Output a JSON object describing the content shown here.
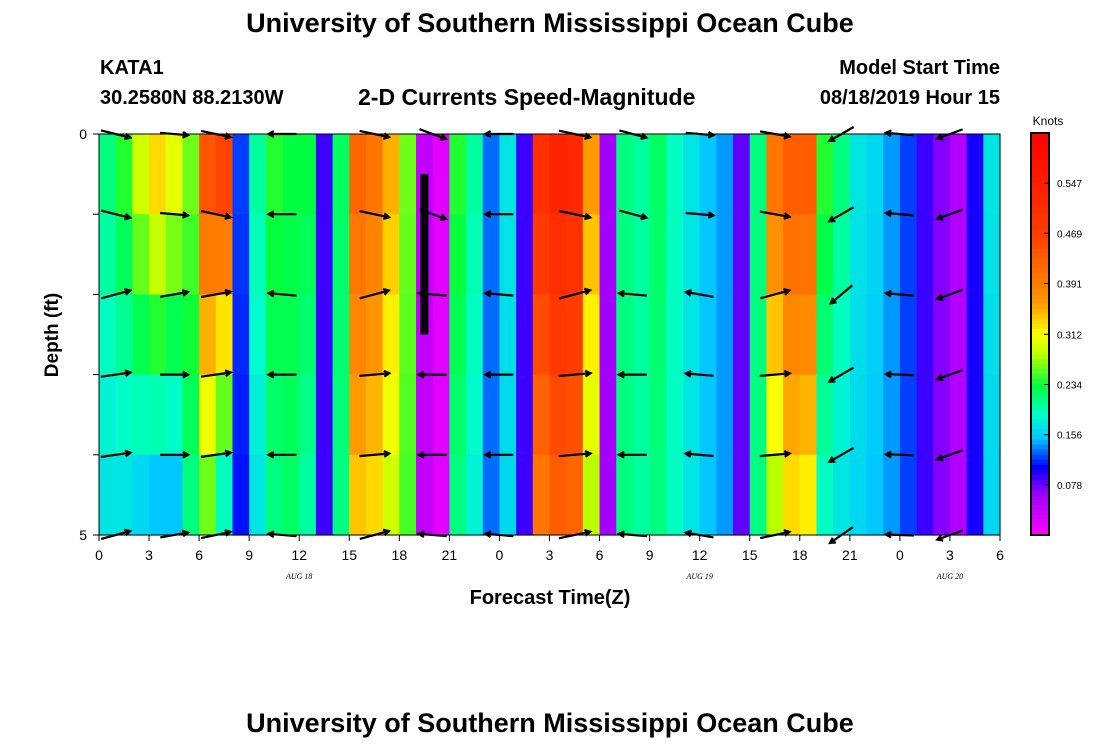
{
  "header": {
    "title": "University of Southern Mississippi Ocean Cube",
    "station_id": "KATA1",
    "coordinates": "30.2580N 88.2130W",
    "plot_title": "2-D Currents Speed-Magnitude",
    "model_start_label": "Model Start Time",
    "model_start_time": "08/18/2019 Hour 15"
  },
  "footer": {
    "title": "University of Southern Mississippi Ocean Cube"
  },
  "chart_data": {
    "type": "heatmap",
    "title": "2-D Currents Speed-Magnitude",
    "xlabel": "Forecast Time(Z)",
    "ylabel": "Depth (ft)",
    "x_range_hours": [
      0,
      54
    ],
    "y_range": [
      0,
      5
    ],
    "y_ticks": [
      "0",
      "5"
    ],
    "x_tick_labels": [
      "0",
      "3",
      "6",
      "9",
      "12",
      "15",
      "18",
      "21",
      "0",
      "3",
      "6",
      "9",
      "12",
      "15",
      "18",
      "21",
      "0",
      "3",
      "6"
    ],
    "date_labels": [
      {
        "text": "AUG 18",
        "hour": 12
      },
      {
        "text": "AUG 19",
        "hour": 36
      },
      {
        "text": "AUG 20",
        "hour": 51
      }
    ],
    "colorbar": {
      "label": "Knots",
      "min": 0,
      "max": 0.625,
      "ticks": [
        "0.547",
        "0.469",
        "0.391",
        "0.312",
        "0.234",
        "0.156",
        "0.078"
      ]
    },
    "hours": [
      0,
      1,
      2,
      3,
      4,
      5,
      6,
      7,
      8,
      9,
      10,
      11,
      12,
      13,
      14,
      15,
      16,
      17,
      18,
      19,
      20,
      21,
      22,
      23,
      24,
      25,
      26,
      27,
      28,
      29,
      30,
      31,
      32,
      33,
      34,
      35,
      36,
      37,
      38,
      39,
      40,
      41,
      42,
      43,
      44,
      45,
      46,
      47,
      48,
      49,
      50,
      51,
      52,
      53
    ],
    "speed_surface": [
      0.21,
      0.24,
      0.29,
      0.33,
      0.3,
      0.26,
      0.44,
      0.46,
      0.12,
      0.2,
      0.24,
      0.23,
      0.23,
      0.09,
      0.22,
      0.42,
      0.4,
      0.35,
      0.26,
      0.04,
      0.02,
      0.24,
      0.2,
      0.13,
      0.17,
      0.09,
      0.5,
      0.53,
      0.52,
      0.36,
      0.06,
      0.21,
      0.2,
      0.22,
      0.19,
      0.17,
      0.15,
      0.14,
      0.08,
      0.21,
      0.4,
      0.43,
      0.43,
      0.24,
      0.21,
      0.17,
      0.16,
      0.14,
      0.12,
      0.09,
      0.07,
      0.05,
      0.1,
      0.17
    ],
    "speed_bottom": [
      0.17,
      0.17,
      0.16,
      0.15,
      0.15,
      0.21,
      0.26,
      0.19,
      0.11,
      0.17,
      0.21,
      0.22,
      0.2,
      0.09,
      0.21,
      0.34,
      0.33,
      0.29,
      0.25,
      0.04,
      0.02,
      0.21,
      0.18,
      0.13,
      0.16,
      0.09,
      0.4,
      0.43,
      0.42,
      0.28,
      0.06,
      0.21,
      0.2,
      0.21,
      0.19,
      0.17,
      0.15,
      0.14,
      0.08,
      0.21,
      0.28,
      0.33,
      0.32,
      0.19,
      0.17,
      0.16,
      0.15,
      0.14,
      0.12,
      0.09,
      0.07,
      0.05,
      0.1,
      0.16
    ],
    "vector_hours": [
      1,
      4.5,
      7,
      11,
      16.5,
      20,
      24,
      28.5,
      32,
      36,
      40.5,
      44.5,
      48,
      51
    ],
    "vector_depths": [
      0,
      1,
      2,
      3,
      4,
      5
    ],
    "vector_angles_deg": [
      [
        -14,
        15,
        8,
        15
      ],
      [
        -5,
        10,
        0,
        10
      ],
      [
        -12,
        10,
        8,
        12
      ],
      [
        180,
        175,
        180,
        175
      ],
      [
        -12,
        15,
        5,
        15
      ],
      [
        -20,
        175,
        180,
        175
      ],
      [
        180,
        175,
        180,
        175
      ],
      [
        -12,
        15,
        5,
        12
      ],
      [
        -15,
        175,
        180,
        175
      ],
      [
        -5,
        170,
        175,
        170
      ],
      [
        -10,
        15,
        5,
        12
      ],
      [
        210,
        220,
        210,
        215
      ],
      [
        175,
        175,
        178,
        178
      ],
      [
        200,
        200,
        200,
        200
      ]
    ],
    "vector_lengths": [
      0.3,
      0.28,
      0.3,
      0.28,
      0.3,
      0.28,
      0.28,
      0.32,
      0.28,
      0.28,
      0.3,
      0.28,
      0.28,
      0.27
    ],
    "annotation_bar": {
      "hour": 19.5,
      "depth_top": 0.5,
      "depth_bottom": 2.5
    }
  }
}
